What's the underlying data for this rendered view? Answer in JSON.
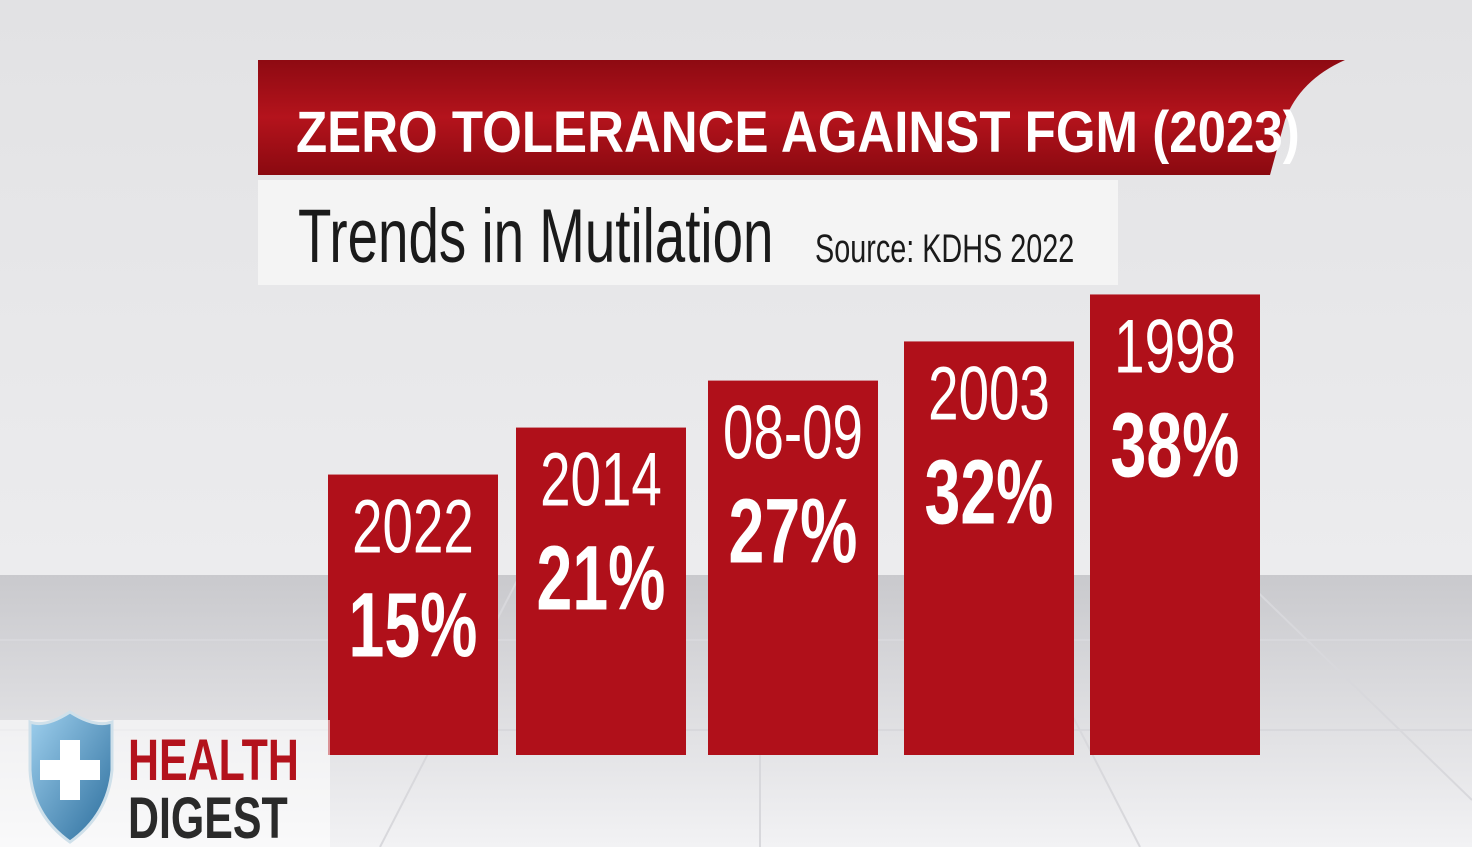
{
  "chart_data": {
    "type": "bar",
    "title": "ZERO TOLERANCE AGAINST FGM (2023)",
    "subtitle": "Trends in Mutilation",
    "source": "Source: KDHS 2022",
    "categories": [
      "2022",
      "2014",
      "08-09",
      "2003",
      "1998"
    ],
    "values": [
      15,
      21,
      27,
      32,
      38
    ],
    "value_labels": [
      "15%",
      "21%",
      "27%",
      "32%",
      "38%"
    ],
    "color": "#b0101a"
  },
  "logo": {
    "line1": "HEALTH",
    "line2": "DIGEST"
  }
}
